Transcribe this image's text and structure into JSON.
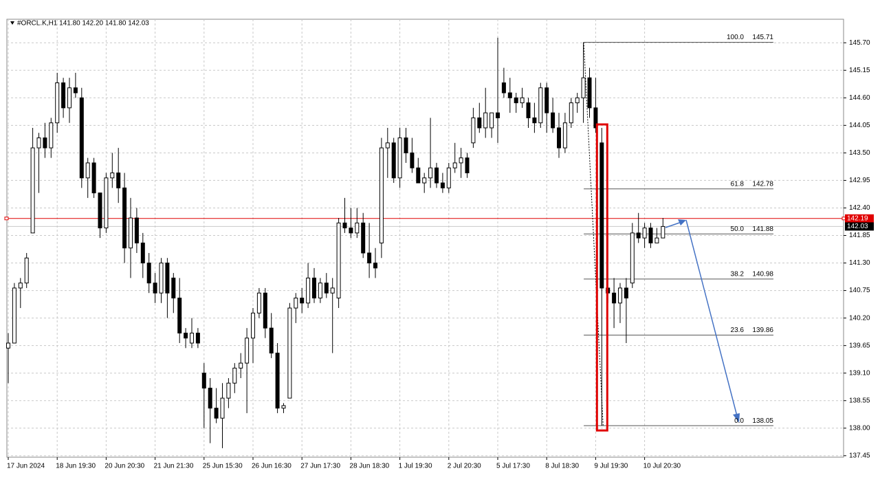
{
  "chart_data": {
    "type": "candlestick",
    "header": "#ORCL.K,H1  141.80 142.20 141.80 142.03",
    "categories": [
      "17 Jun 2024",
      null,
      null,
      null,
      null,
      null,
      null,
      null,
      "18 Jun 19:30",
      null,
      null,
      null,
      null,
      null,
      null,
      null,
      "20 Jun 20:30",
      null,
      null,
      null,
      null,
      null,
      null,
      null,
      "21 Jun 21:30",
      null,
      null,
      null,
      null,
      null,
      null,
      null,
      "25 Jun 15:30",
      null,
      null,
      null,
      null,
      null,
      null,
      null,
      "26 Jun 16:30",
      null,
      null,
      null,
      null,
      null,
      null,
      null,
      "27 Jun 17:30",
      null,
      null,
      null,
      null,
      null,
      null,
      null,
      "28 Jun 18:30",
      null,
      null,
      null,
      null,
      null,
      null,
      null,
      "1 Jul 19:30",
      null,
      null,
      null,
      null,
      null,
      null,
      null,
      "2 Jul 20:30",
      null,
      null,
      null,
      null,
      null,
      null,
      null,
      "5 Jul 17:30",
      null,
      null,
      null,
      null,
      null,
      null,
      null,
      "8 Jul 18:30",
      null,
      null,
      null,
      null,
      null,
      null,
      null,
      "9 Jul 19:30",
      null,
      null,
      null,
      null,
      null,
      null,
      null,
      "10 Jul 20:30",
      null,
      null,
      null
    ],
    "open": [
      139.6,
      139.7,
      140.8,
      140.9,
      141.9,
      143.6,
      143.8,
      143.6,
      144.1,
      144.9,
      144.4,
      144.8,
      144.6,
      143.0,
      143.3,
      142.7,
      142.0,
      143.0,
      143.1,
      142.8,
      141.6,
      142.2,
      141.7,
      141.3,
      140.9,
      140.7,
      141.3,
      141.0,
      140.6,
      139.9,
      139.7,
      139.9,
      139.1,
      138.8,
      138.4,
      138.2,
      138.6,
      138.9,
      139.2,
      139.3,
      139.8,
      140.3,
      140.7,
      140.0,
      139.5,
      138.4,
      138.6,
      140.4,
      140.6,
      140.5,
      141.0,
      140.6,
      140.9,
      140.7,
      140.6,
      142.1,
      142.0,
      141.9,
      142.1,
      141.5,
      141.3,
      141.7,
      143.6,
      143.7,
      143.0,
      143.8,
      143.5,
      143.2,
      142.9,
      143.0,
      143.2,
      142.9,
      142.8,
      143.2,
      143.3,
      143.4,
      143.7,
      144.2,
      144.0,
      144.0,
      144.3,
      144.9,
      144.7,
      144.6,
      144.5,
      144.5,
      144.2,
      144.1,
      144.8,
      144.3,
      144.0,
      143.6,
      144.1,
      144.5,
      144.6,
      145.0,
      144.4,
      143.7,
      140.8,
      140.7,
      140.5,
      140.8,
      140.9,
      141.9,
      141.8,
      142.0,
      141.7,
      141.8
    ],
    "high": [
      139.9,
      140.9,
      141.0,
      141.5,
      144.0,
      143.9,
      144.1,
      144.2,
      145.1,
      145.0,
      145.0,
      145.1,
      144.8,
      143.4,
      143.4,
      142.7,
      143.1,
      143.5,
      143.6,
      143.1,
      142.6,
      142.4,
      141.9,
      141.5,
      141.1,
      141.4,
      141.4,
      141.1,
      141.0,
      140.0,
      140.2,
      140.0,
      139.3,
      139.0,
      138.8,
      138.9,
      139.0,
      139.3,
      139.5,
      140.0,
      140.4,
      140.8,
      140.8,
      140.3,
      139.7,
      138.5,
      140.5,
      140.7,
      140.8,
      141.3,
      141.2,
      141.0,
      141.1,
      141.0,
      142.2,
      142.6,
      142.4,
      142.4,
      142.3,
      142.1,
      141.6,
      143.8,
      144.0,
      143.8,
      144.0,
      144.0,
      143.8,
      143.4,
      143.1,
      144.2,
      143.3,
      143.1,
      143.3,
      143.7,
      143.6,
      143.5,
      144.4,
      144.5,
      144.8,
      144.3,
      145.8,
      145.2,
      145.0,
      144.7,
      144.8,
      144.6,
      144.5,
      144.9,
      144.9,
      144.6,
      144.3,
      144.3,
      144.6,
      144.7,
      145.71,
      145.2,
      145.0,
      144.0,
      141.9,
      141.0,
      140.9,
      141.0,
      142.1,
      142.3,
      142.1,
      142.1,
      142.0,
      142.2
    ],
    "low": [
      138.9,
      139.7,
      140.4,
      140.8,
      141.9,
      142.7,
      143.4,
      143.4,
      143.9,
      144.2,
      144.1,
      144.6,
      142.8,
      142.6,
      142.6,
      141.8,
      141.9,
      142.8,
      142.5,
      141.3,
      141.0,
      141.5,
      141.0,
      140.7,
      140.5,
      140.5,
      140.2,
      140.3,
      139.7,
      139.6,
      139.6,
      139.6,
      138.0,
      137.7,
      138.1,
      137.6,
      138.4,
      138.7,
      139.0,
      138.3,
      139.3,
      140.2,
      139.8,
      139.4,
      138.3,
      138.3,
      138.6,
      140.1,
      140.3,
      140.4,
      140.5,
      140.5,
      140.6,
      139.5,
      140.4,
      141.9,
      141.8,
      141.8,
      141.4,
      141.0,
      141.0,
      141.4,
      143.0,
      142.9,
      142.8,
      143.3,
      143.1,
      142.9,
      142.7,
      142.8,
      142.8,
      142.7,
      142.7,
      143.1,
      143.0,
      143.0,
      143.6,
      143.9,
      143.8,
      143.8,
      143.7,
      144.6,
      144.3,
      144.3,
      144.4,
      144.0,
      143.9,
      144.0,
      143.9,
      143.9,
      143.4,
      143.5,
      144.0,
      144.3,
      144.1,
      144.2,
      143.9,
      138.05,
      140.5,
      140.0,
      140.1,
      139.7,
      140.8,
      141.7,
      141.6,
      141.6,
      141.7,
      141.8
    ],
    "close": [
      139.7,
      140.8,
      140.9,
      141.4,
      143.6,
      143.8,
      143.6,
      144.1,
      144.9,
      144.4,
      144.8,
      144.7,
      143.0,
      143.3,
      142.7,
      142.0,
      143.0,
      143.1,
      142.8,
      141.6,
      142.2,
      141.7,
      141.3,
      140.9,
      140.7,
      141.3,
      140.7,
      140.6,
      139.9,
      139.8,
      139.9,
      139.7,
      138.8,
      138.4,
      138.2,
      138.6,
      138.9,
      139.2,
      139.3,
      139.8,
      140.3,
      140.7,
      140.0,
      139.5,
      138.4,
      138.45,
      140.4,
      140.6,
      140.5,
      141.0,
      140.6,
      140.9,
      140.7,
      140.8,
      142.1,
      142.0,
      141.9,
      142.1,
      141.5,
      141.3,
      141.2,
      143.6,
      143.7,
      143.0,
      143.8,
      143.5,
      143.2,
      142.9,
      143.0,
      143.2,
      142.9,
      142.8,
      143.2,
      143.3,
      143.4,
      143.1,
      144.2,
      144.0,
      144.3,
      144.3,
      144.2,
      144.7,
      144.6,
      144.5,
      144.6,
      144.2,
      144.1,
      144.8,
      144.3,
      144.0,
      143.6,
      144.1,
      144.5,
      144.6,
      145.0,
      144.4,
      144.0,
      140.8,
      140.7,
      140.5,
      140.8,
      140.6,
      141.9,
      141.8,
      142.0,
      141.7,
      141.8,
      142.03
    ],
    "up_color": "#ffffff",
    "down_color": "#000000",
    "ylim": [
      137.42,
      146.17
    ],
    "yticks": [
      {
        "value": 145.7,
        "label": "145.70"
      },
      {
        "value": 145.15,
        "label": "145.15"
      },
      {
        "value": 144.6,
        "label": "144.60"
      },
      {
        "value": 144.05,
        "label": "144.05"
      },
      {
        "value": 143.5,
        "label": "143.50"
      },
      {
        "value": 142.95,
        "label": "142.95"
      },
      {
        "value": 142.4,
        "label": "142.40"
      },
      {
        "value": 141.85,
        "label": "141.85"
      },
      {
        "value": 141.3,
        "label": "141.30"
      },
      {
        "value": 140.75,
        "label": "140.75"
      },
      {
        "value": 140.2,
        "label": "140.20"
      },
      {
        "value": 139.65,
        "label": "139.65"
      },
      {
        "value": 139.1,
        "label": "139.10"
      },
      {
        "value": 138.55,
        "label": "138.55"
      },
      {
        "value": 138,
        "label": "138.00"
      },
      {
        "value": 137.45,
        "label": "137.45"
      }
    ],
    "grid": true,
    "fibonacci": [
      {
        "level": "100.0",
        "price": 145.71
      },
      {
        "level": "61.8",
        "price": 142.78
      },
      {
        "level": "50.0",
        "price": 141.88
      },
      {
        "level": "38.2",
        "price": 140.98
      },
      {
        "level": "23.6",
        "price": 139.86
      },
      {
        "level": "0.0",
        "price": 138.05
      }
    ],
    "price_lines": [
      {
        "price": 142.19,
        "color": "#e00000"
      },
      {
        "price": 142.03,
        "color": "#000000"
      }
    ]
  }
}
